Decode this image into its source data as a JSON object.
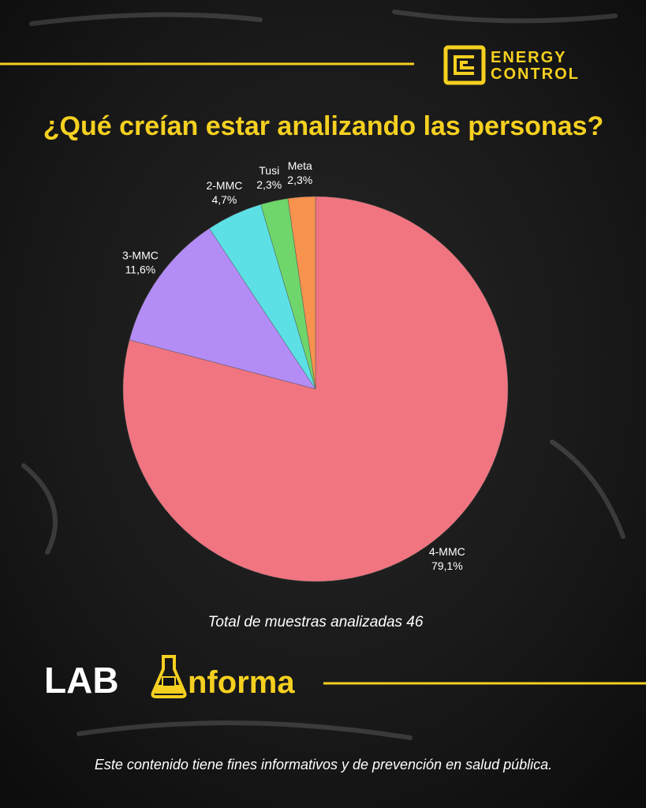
{
  "logo": {
    "line1": "ENERGY",
    "line2": "CONTROL"
  },
  "chart_data": {
    "type": "pie",
    "title": "¿Qué creían estar analizando las personas?",
    "categories": [
      "4-MMC",
      "3-MMC",
      "2-MMC",
      "Tusi",
      "Meta"
    ],
    "values": [
      79.1,
      11.6,
      4.7,
      2.3,
      2.3
    ],
    "value_labels": [
      "79,1%",
      "11,6%",
      "4,7%",
      "2,3%",
      "2,3%"
    ],
    "colors": [
      "#f07580",
      "#b38cf5",
      "#5ce0e6",
      "#6ed66a",
      "#f7924f"
    ],
    "note": "Total de muestras analizadas 46"
  },
  "brand": {
    "part1": "LAB",
    "part2": "nforma"
  },
  "footer": "Este contenido tiene fines informativos y de prevención en salud pública."
}
